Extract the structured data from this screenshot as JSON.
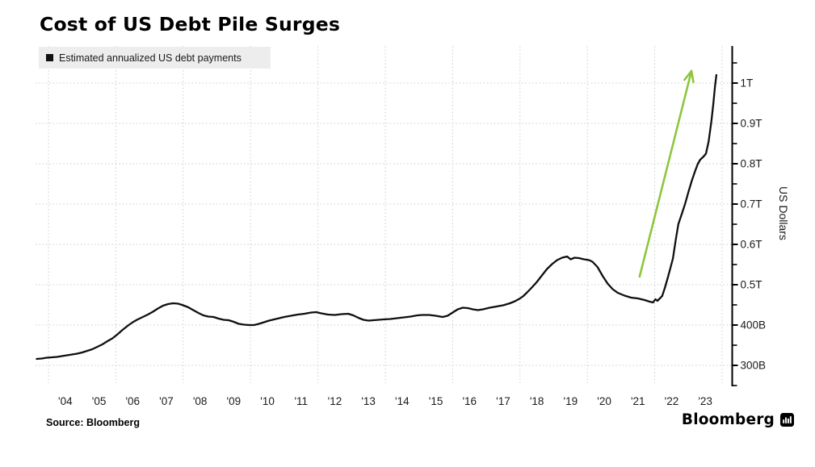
{
  "title": "Cost of US Debt Pile Surges",
  "legend": {
    "label": "Estimated annualized US debt payments",
    "swatch_color": "#111111"
  },
  "source": {
    "text": "Source: Bloomberg"
  },
  "brand": {
    "name": "Bloomberg",
    "logo": "bloomberg-bars-icon"
  },
  "colors": {
    "line": "#0f0f0f",
    "arrow": "#8DC63F",
    "grid": "#cccccc",
    "axis": "#000000",
    "tick_text": "#1a1a1a",
    "legend_bg": "#ededed"
  },
  "chart_data": {
    "type": "line",
    "title": "Cost of US Debt Pile Surges",
    "ylabel": "US Dollars",
    "xlabel": "",
    "grid": true,
    "legend_position": "top-left",
    "axis_side": "right",
    "unit": "USD billions",
    "ylim_billions": [
      250,
      1050
    ],
    "xlim_years": [
      2003.6,
      2024.2
    ],
    "y_ticks": [
      {
        "value": 300,
        "label": "300B"
      },
      {
        "value": 400,
        "label": "400B"
      },
      {
        "value": 500,
        "label": "0.5T"
      },
      {
        "value": 600,
        "label": "0.6T"
      },
      {
        "value": 700,
        "label": "0.7T"
      },
      {
        "value": 800,
        "label": "0.8T"
      },
      {
        "value": 900,
        "label": "0.9T"
      },
      {
        "value": 1000,
        "label": "1T"
      }
    ],
    "y_minor_tick_step": 50,
    "x_ticks": [
      {
        "year": 2004,
        "label": "'04"
      },
      {
        "year": 2005,
        "label": "'05"
      },
      {
        "year": 2006,
        "label": "'06"
      },
      {
        "year": 2007,
        "label": "'07"
      },
      {
        "year": 2008,
        "label": "'08"
      },
      {
        "year": 2009,
        "label": "'09"
      },
      {
        "year": 2010,
        "label": "'10"
      },
      {
        "year": 2011,
        "label": "'11"
      },
      {
        "year": 2012,
        "label": "'12"
      },
      {
        "year": 2013,
        "label": "'13"
      },
      {
        "year": 2014,
        "label": "'14"
      },
      {
        "year": 2015,
        "label": "'15"
      },
      {
        "year": 2016,
        "label": "'16"
      },
      {
        "year": 2017,
        "label": "'17"
      },
      {
        "year": 2018,
        "label": "'18"
      },
      {
        "year": 2019,
        "label": "'19"
      },
      {
        "year": 2020,
        "label": "'20"
      },
      {
        "year": 2021,
        "label": "'21"
      },
      {
        "year": 2022,
        "label": "'22"
      },
      {
        "year": 2023,
        "label": "'23"
      }
    ],
    "gridline_years": [
      2004,
      2006,
      2008,
      2010,
      2012,
      2014,
      2016,
      2018,
      2020,
      2022,
      2024
    ],
    "series": [
      {
        "name": "Estimated annualized US debt payments",
        "color": "#0f0f0f",
        "points": [
          [
            2003.65,
            316
          ],
          [
            2003.8,
            317
          ],
          [
            2003.95,
            319
          ],
          [
            2004.1,
            320
          ],
          [
            2004.25,
            321
          ],
          [
            2004.4,
            323
          ],
          [
            2004.55,
            325
          ],
          [
            2004.7,
            327
          ],
          [
            2004.85,
            329
          ],
          [
            2005.0,
            332
          ],
          [
            2005.15,
            336
          ],
          [
            2005.3,
            340
          ],
          [
            2005.45,
            346
          ],
          [
            2005.6,
            352
          ],
          [
            2005.75,
            360
          ],
          [
            2005.9,
            367
          ],
          [
            2006.05,
            377
          ],
          [
            2006.2,
            388
          ],
          [
            2006.35,
            398
          ],
          [
            2006.5,
            407
          ],
          [
            2006.65,
            414
          ],
          [
            2006.8,
            420
          ],
          [
            2006.95,
            426
          ],
          [
            2007.1,
            433
          ],
          [
            2007.25,
            441
          ],
          [
            2007.4,
            448
          ],
          [
            2007.55,
            452
          ],
          [
            2007.7,
            454
          ],
          [
            2007.85,
            453
          ],
          [
            2008.0,
            449
          ],
          [
            2008.15,
            444
          ],
          [
            2008.3,
            437
          ],
          [
            2008.45,
            430
          ],
          [
            2008.6,
            424
          ],
          [
            2008.75,
            421
          ],
          [
            2008.9,
            420
          ],
          [
            2009.05,
            416
          ],
          [
            2009.2,
            413
          ],
          [
            2009.35,
            412
          ],
          [
            2009.5,
            408
          ],
          [
            2009.65,
            403
          ],
          [
            2009.8,
            401
          ],
          [
            2009.95,
            400
          ],
          [
            2010.1,
            400
          ],
          [
            2010.25,
            403
          ],
          [
            2010.4,
            407
          ],
          [
            2010.55,
            411
          ],
          [
            2010.7,
            414
          ],
          [
            2010.85,
            417
          ],
          [
            2011.0,
            420
          ],
          [
            2011.2,
            423
          ],
          [
            2011.4,
            426
          ],
          [
            2011.6,
            428
          ],
          [
            2011.8,
            431
          ],
          [
            2011.95,
            432
          ],
          [
            2012.1,
            429
          ],
          [
            2012.3,
            426
          ],
          [
            2012.5,
            425
          ],
          [
            2012.7,
            427
          ],
          [
            2012.9,
            428
          ],
          [
            2013.05,
            424
          ],
          [
            2013.2,
            418
          ],
          [
            2013.35,
            413
          ],
          [
            2013.5,
            411
          ],
          [
            2013.65,
            412
          ],
          [
            2013.8,
            413
          ],
          [
            2013.95,
            414
          ],
          [
            2014.15,
            415
          ],
          [
            2014.35,
            417
          ],
          [
            2014.55,
            419
          ],
          [
            2014.75,
            421
          ],
          [
            2014.95,
            424
          ],
          [
            2015.1,
            425
          ],
          [
            2015.3,
            425
          ],
          [
            2015.5,
            423
          ],
          [
            2015.7,
            420
          ],
          [
            2015.85,
            423
          ],
          [
            2016.0,
            431
          ],
          [
            2016.15,
            439
          ],
          [
            2016.3,
            443
          ],
          [
            2016.45,
            442
          ],
          [
            2016.6,
            439
          ],
          [
            2016.75,
            437
          ],
          [
            2016.9,
            439
          ],
          [
            2017.1,
            443
          ],
          [
            2017.3,
            446
          ],
          [
            2017.5,
            449
          ],
          [
            2017.7,
            454
          ],
          [
            2017.85,
            459
          ],
          [
            2018.0,
            466
          ],
          [
            2018.1,
            472
          ],
          [
            2018.2,
            480
          ],
          [
            2018.35,
            493
          ],
          [
            2018.5,
            507
          ],
          [
            2018.65,
            523
          ],
          [
            2018.8,
            539
          ],
          [
            2018.95,
            551
          ],
          [
            2019.1,
            561
          ],
          [
            2019.25,
            567
          ],
          [
            2019.4,
            570
          ],
          [
            2019.5,
            563
          ],
          [
            2019.62,
            567
          ],
          [
            2019.75,
            566
          ],
          [
            2019.9,
            563
          ],
          [
            2020.05,
            561
          ],
          [
            2020.15,
            557
          ],
          [
            2020.3,
            544
          ],
          [
            2020.45,
            522
          ],
          [
            2020.6,
            503
          ],
          [
            2020.75,
            489
          ],
          [
            2020.9,
            480
          ],
          [
            2021.1,
            473
          ],
          [
            2021.3,
            468
          ],
          [
            2021.5,
            466
          ],
          [
            2021.7,
            462
          ],
          [
            2021.85,
            458
          ],
          [
            2021.95,
            456
          ],
          [
            2022.02,
            464
          ],
          [
            2022.08,
            460
          ],
          [
            2022.15,
            466
          ],
          [
            2022.22,
            472
          ],
          [
            2022.3,
            492
          ],
          [
            2022.38,
            515
          ],
          [
            2022.46,
            540
          ],
          [
            2022.54,
            565
          ],
          [
            2022.62,
            610
          ],
          [
            2022.7,
            650
          ],
          [
            2022.8,
            675
          ],
          [
            2022.9,
            700
          ],
          [
            2023.0,
            730
          ],
          [
            2023.1,
            758
          ],
          [
            2023.2,
            782
          ],
          [
            2023.28,
            800
          ],
          [
            2023.35,
            810
          ],
          [
            2023.45,
            818
          ],
          [
            2023.52,
            825
          ],
          [
            2023.6,
            855
          ],
          [
            2023.68,
            905
          ],
          [
            2023.74,
            950
          ],
          [
            2023.79,
            992
          ],
          [
            2023.83,
            1020
          ]
        ]
      }
    ],
    "annotations": [
      {
        "type": "arrow",
        "from": [
          2021.55,
          520
        ],
        "to": [
          2023.09,
          1030
        ],
        "color": "#8DC63F"
      }
    ]
  }
}
